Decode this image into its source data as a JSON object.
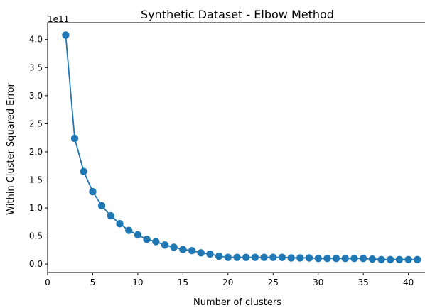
{
  "chart_data": {
    "type": "line",
    "title": "Synthetic Dataset - Elbow Method",
    "xlabel": "Number of clusters",
    "ylabel": "Within Cluster Squared Error",
    "y_offset_label": "1e11",
    "xlim": [
      0,
      42
    ],
    "ylim": [
      -0.15,
      4.3
    ],
    "x_ticks": [
      0,
      5,
      10,
      15,
      20,
      25,
      30,
      35,
      40
    ],
    "x_tick_labels": [
      "0",
      "5",
      "10",
      "15",
      "20",
      "25",
      "30",
      "35",
      "40"
    ],
    "y_ticks": [
      0.0,
      0.5,
      1.0,
      1.5,
      2.0,
      2.5,
      3.0,
      3.5,
      4.0
    ],
    "y_tick_labels": [
      "0.0",
      "0.5",
      "1.0",
      "1.5",
      "2.0",
      "2.5",
      "3.0",
      "3.5",
      "4.0"
    ],
    "grid": false,
    "legend": "none",
    "series": [
      {
        "color": "#1f77b4",
        "marker": "circle",
        "x": [
          2,
          3,
          4,
          5,
          6,
          7,
          8,
          9,
          10,
          11,
          12,
          13,
          14,
          15,
          16,
          17,
          18,
          19,
          20,
          21,
          22,
          23,
          24,
          25,
          26,
          27,
          28,
          29,
          30,
          31,
          32,
          33,
          34,
          35,
          36,
          37,
          38,
          39,
          40,
          41
        ],
        "y": [
          4.08,
          2.24,
          1.65,
          1.29,
          1.04,
          0.86,
          0.72,
          0.6,
          0.52,
          0.44,
          0.4,
          0.34,
          0.3,
          0.26,
          0.24,
          0.2,
          0.18,
          0.14,
          0.12,
          0.12,
          0.12,
          0.12,
          0.12,
          0.12,
          0.12,
          0.11,
          0.11,
          0.11,
          0.1,
          0.1,
          0.1,
          0.1,
          0.1,
          0.1,
          0.09,
          0.08,
          0.08,
          0.08,
          0.08,
          0.08
        ]
      }
    ]
  }
}
